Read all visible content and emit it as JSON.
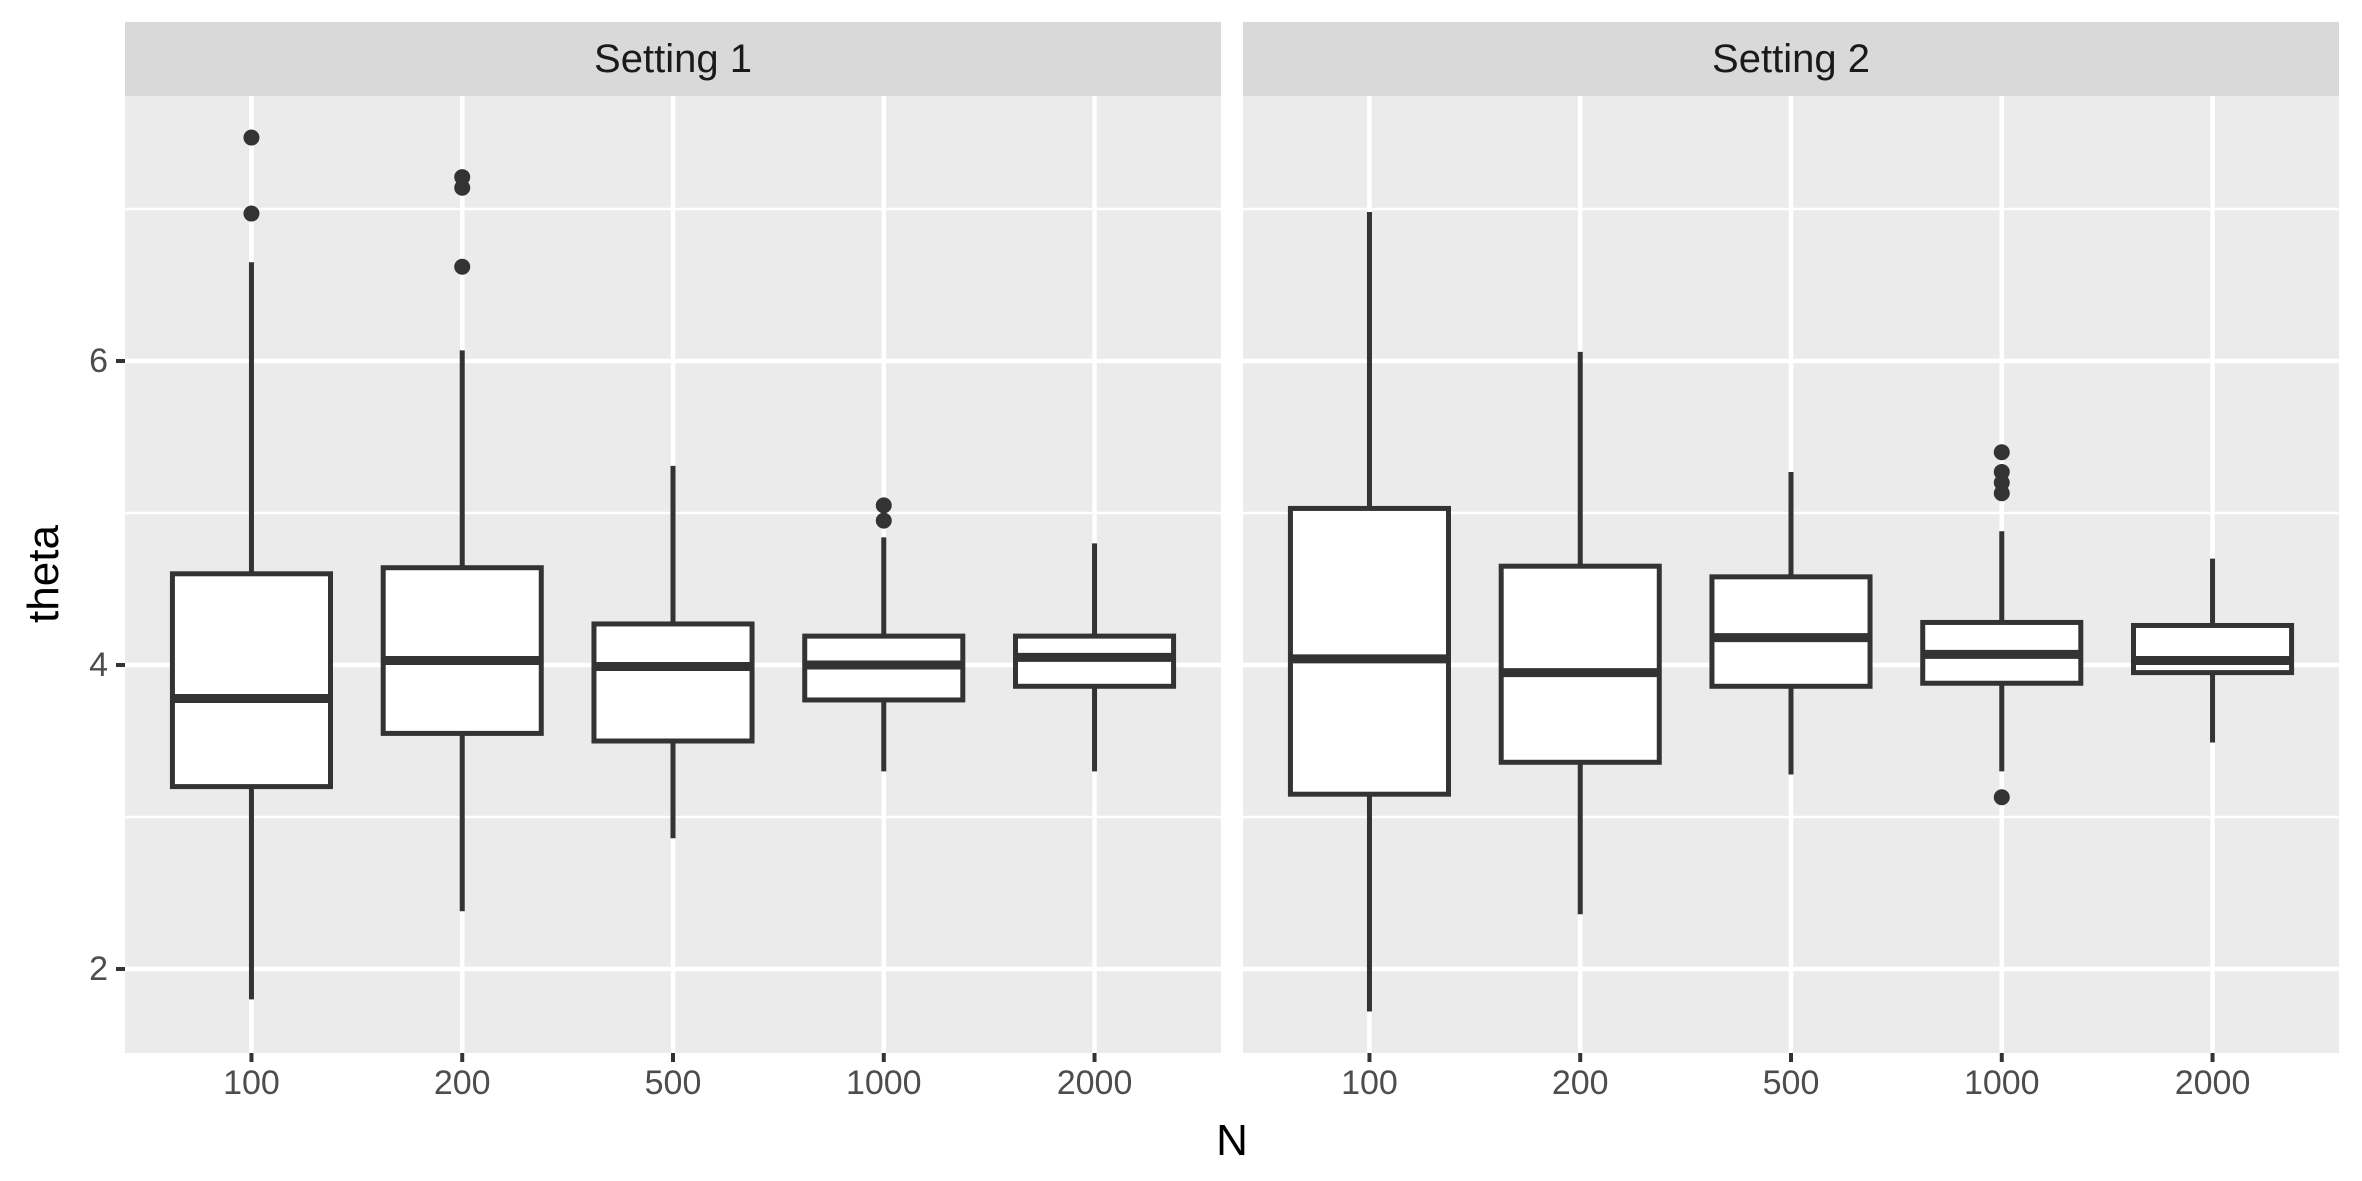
{
  "chart_data": {
    "type": "boxplot",
    "xlabel": "N",
    "ylabel": "theta",
    "categories": [
      "100",
      "200",
      "500",
      "1000",
      "2000"
    ],
    "y_ticks": [
      2,
      4,
      6
    ],
    "y_tick_labels": [
      "6",
      "4",
      "2"
    ],
    "y_minor_ticks": [
      3,
      5,
      7
    ],
    "ylim": [
      1.45,
      7.74
    ],
    "legend": "none",
    "grid": "major-and-minor-horizontal, major-vertical",
    "panels": [
      {
        "label": "Setting 1",
        "boxes": [
          {
            "category": "100",
            "whisker_low": 1.8,
            "q1": 3.2,
            "median": 3.78,
            "q3": 4.6,
            "whisker_high": 6.65,
            "outliers": [
              6.97,
              7.47
            ]
          },
          {
            "category": "200",
            "whisker_low": 2.38,
            "q1": 3.55,
            "median": 4.03,
            "q3": 4.64,
            "whisker_high": 6.07,
            "outliers": [
              6.62,
              7.14,
              7.21
            ]
          },
          {
            "category": "500",
            "whisker_low": 2.86,
            "q1": 3.5,
            "median": 3.99,
            "q3": 4.27,
            "whisker_high": 5.31,
            "outliers": []
          },
          {
            "category": "1000",
            "whisker_low": 3.3,
            "q1": 3.77,
            "median": 4.0,
            "q3": 4.19,
            "whisker_high": 4.84,
            "outliers": [
              4.95,
              5.05
            ]
          },
          {
            "category": "2000",
            "whisker_low": 3.3,
            "q1": 3.86,
            "median": 4.05,
            "q3": 4.19,
            "whisker_high": 4.8,
            "outliers": []
          }
        ]
      },
      {
        "label": "Setting 2",
        "boxes": [
          {
            "category": "100",
            "whisker_low": 1.72,
            "q1": 3.15,
            "median": 4.04,
            "q3": 5.03,
            "whisker_high": 6.98,
            "outliers": []
          },
          {
            "category": "200",
            "whisker_low": 2.36,
            "q1": 3.36,
            "median": 3.95,
            "q3": 4.65,
            "whisker_high": 6.06,
            "outliers": []
          },
          {
            "category": "500",
            "whisker_low": 3.28,
            "q1": 3.86,
            "median": 4.18,
            "q3": 4.58,
            "whisker_high": 5.27,
            "outliers": []
          },
          {
            "category": "1000",
            "whisker_low": 3.3,
            "q1": 3.88,
            "median": 4.07,
            "q3": 4.28,
            "whisker_high": 4.88,
            "outliers": [
              5.13,
              5.2,
              5.27,
              5.4,
              3.13
            ]
          },
          {
            "category": "2000",
            "whisker_low": 3.49,
            "q1": 3.95,
            "median": 4.03,
            "q3": 4.26,
            "whisker_high": 4.7,
            "outliers": []
          }
        ]
      }
    ],
    "colors": {
      "panel_bg": "#EBEBEB",
      "strip_bg": "#D9D9D9",
      "grid": "#FFFFFF",
      "box_stroke": "#333333",
      "box_fill": "#FFFFFF",
      "tick_mark": "#333333",
      "axis_text": "#4D4D4D",
      "title_text": "#000000"
    }
  }
}
